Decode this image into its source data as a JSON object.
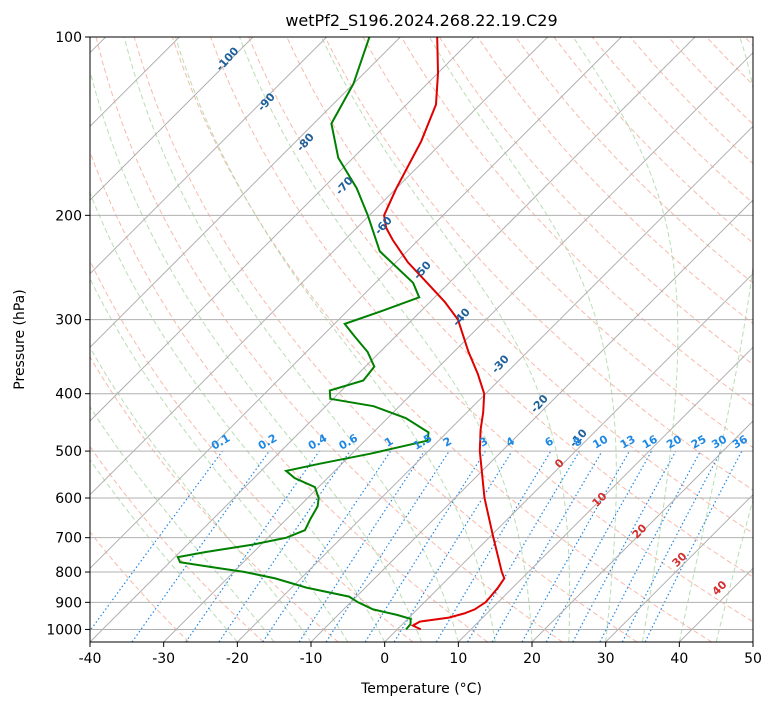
{
  "chart_data": {
    "type": "line",
    "title": "wetPf2_S196.2024.268.22.19.C29",
    "xlabel": "Temperature (°C)",
    "ylabel": "Pressure (hPa)",
    "xlim": [
      -40,
      50
    ],
    "ylim": [
      1050,
      100
    ],
    "y_scale": "log",
    "grid": true,
    "x_ticks": [
      -40,
      -30,
      -20,
      -10,
      0,
      10,
      20,
      30,
      40,
      50
    ],
    "y_ticks": [
      1000,
      900,
      800,
      700,
      600,
      500,
      400,
      300,
      200,
      100
    ],
    "isotherms_temp": [
      -160,
      -150,
      -140,
      -130,
      -120,
      -110,
      -100,
      -90,
      -80,
      -70,
      -60,
      -50,
      -40,
      -30,
      -20,
      -10,
      0,
      10,
      20,
      30,
      40,
      50
    ],
    "dry_adiabat_labels": [
      "-100",
      "-90",
      "-80",
      "-70",
      "-60",
      "-50",
      "-40",
      "-30",
      "-20",
      "-10"
    ],
    "moist_adiabat_labels": [
      "0",
      "10",
      "20",
      "30",
      "40"
    ],
    "mixing_ratio_labels": [
      "0.1",
      "0.2",
      "0.4",
      "0.6",
      "1",
      "1.5",
      "2",
      "3",
      "4",
      "6",
      "8",
      "10",
      "13",
      "16",
      "20",
      "25",
      "30",
      "36"
    ],
    "series": [
      {
        "color": "#e00000",
        "points": [
          [
            1000,
            3.2
          ],
          [
            985,
            1.6
          ],
          [
            970,
            2.0
          ],
          [
            955,
            5.4
          ],
          [
            940,
            6.9
          ],
          [
            925,
            7.8
          ],
          [
            900,
            8.3
          ],
          [
            880,
            8.2
          ],
          [
            850,
            8.0
          ],
          [
            820,
            7.6
          ],
          [
            800,
            6.4
          ],
          [
            700,
            0.6
          ],
          [
            600,
            -6.0
          ],
          [
            500,
            -13.0
          ],
          [
            460,
            -15.8
          ],
          [
            430,
            -17.8
          ],
          [
            400,
            -20.2
          ],
          [
            370,
            -23.8
          ],
          [
            340,
            -28.0
          ],
          [
            300,
            -33.8
          ],
          [
            280,
            -38.0
          ],
          [
            260,
            -43.0
          ],
          [
            240,
            -48.4
          ],
          [
            220,
            -53.5
          ],
          [
            210,
            -56.0
          ],
          [
            200,
            -58.0
          ],
          [
            180,
            -60.0
          ],
          [
            150,
            -63.0
          ],
          [
            130,
            -66.0
          ],
          [
            115,
            -70.0
          ],
          [
            100,
            -75.0
          ]
        ]
      },
      {
        "color": "#008000",
        "points": [
          [
            1000,
            1.2
          ],
          [
            980,
            1.1
          ],
          [
            960,
            0.4
          ],
          [
            945,
            -2.0
          ],
          [
            925,
            -6.0
          ],
          [
            900,
            -9.0
          ],
          [
            880,
            -11.0
          ],
          [
            850,
            -18.0
          ],
          [
            820,
            -23.5
          ],
          [
            800,
            -28.5
          ],
          [
            785,
            -33.5
          ],
          [
            770,
            -38.6
          ],
          [
            755,
            -39.6
          ],
          [
            740,
            -36.5
          ],
          [
            720,
            -31.3
          ],
          [
            700,
            -27.5
          ],
          [
            680,
            -26.0
          ],
          [
            650,
            -26.8
          ],
          [
            620,
            -27.5
          ],
          [
            600,
            -28.5
          ],
          [
            575,
            -30.5
          ],
          [
            555,
            -34.5
          ],
          [
            540,
            -36.6
          ],
          [
            525,
            -33.0
          ],
          [
            505,
            -27.5
          ],
          [
            480,
            -21.5
          ],
          [
            465,
            -22.5
          ],
          [
            440,
            -27.5
          ],
          [
            420,
            -33.5
          ],
          [
            408,
            -40.4
          ],
          [
            395,
            -41.6
          ],
          [
            380,
            -38.4
          ],
          [
            360,
            -38.8
          ],
          [
            340,
            -41.7
          ],
          [
            320,
            -45.6
          ],
          [
            305,
            -48.6
          ],
          [
            290,
            -45.3
          ],
          [
            275,
            -42.1
          ],
          [
            260,
            -44.9
          ],
          [
            230,
            -53.7
          ],
          [
            200,
            -60.2
          ],
          [
            180,
            -65.4
          ],
          [
            160,
            -72.0
          ],
          [
            140,
            -77.6
          ],
          [
            120,
            -80.0
          ],
          [
            100,
            -84.2
          ]
        ]
      }
    ]
  }
}
